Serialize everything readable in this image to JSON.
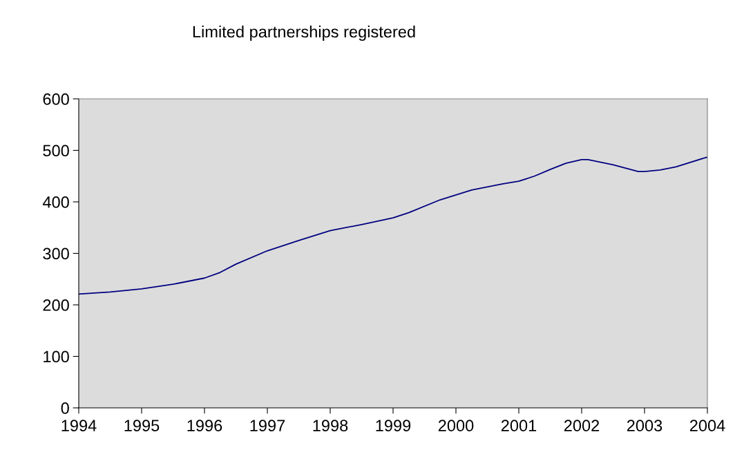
{
  "chart_data": {
    "type": "line",
    "title": "Limited partnerships registered",
    "x": [
      1994,
      1994.5,
      1995,
      1995.5,
      1996,
      1996.25,
      1996.5,
      1997,
      1997.5,
      1998,
      1998.5,
      1999,
      1999.25,
      1999.75,
      2000.25,
      2000.75,
      2001,
      2001.25,
      2001.5,
      2001.75,
      2002,
      2002.1,
      2002.5,
      2002.9,
      2003,
      2003.25,
      2003.5,
      2004
    ],
    "series": [
      {
        "color": "#000080",
        "values": [
          221,
          225,
          231,
          240,
          252,
          263,
          279,
          305,
          325,
          344,
          356,
          369,
          379,
          404,
          423,
          435,
          440,
          450,
          463,
          475,
          482,
          482,
          472,
          459,
          459,
          462,
          468,
          487
        ]
      }
    ],
    "xlim": [
      1994,
      2004
    ],
    "xticks": [
      1994,
      1995,
      1996,
      1997,
      1998,
      1999,
      2000,
      2001,
      2002,
      2003,
      2004
    ],
    "ylim": [
      0,
      600
    ],
    "yticks": [
      0,
      100,
      200,
      300,
      400,
      500,
      600
    ],
    "grid": false,
    "legend": false,
    "marker": "none",
    "line_style": "solid"
  }
}
